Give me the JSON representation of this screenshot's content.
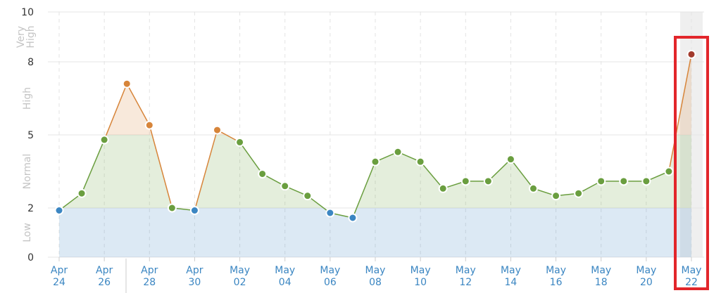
{
  "chart_data": {
    "type": "line",
    "x": [
      "Apr 24",
      "Apr 25",
      "Apr 26",
      "Apr 27",
      "Apr 28",
      "Apr 29",
      "Apr 30",
      "May 01",
      "May 02",
      "May 03",
      "May 04",
      "May 05",
      "May 06",
      "May 07",
      "May 08",
      "May 09",
      "May 10",
      "May 11",
      "May 12",
      "May 13",
      "May 14",
      "May 15",
      "May 16",
      "May 17",
      "May 18",
      "May 19",
      "May 20",
      "May 21",
      "May 22"
    ],
    "x_tick_labels": [
      {
        "line1": "Apr",
        "line2": "24"
      },
      {
        "line1": "Apr",
        "line2": "26"
      },
      {
        "line1": "Apr",
        "line2": "28"
      },
      {
        "line1": "Apr",
        "line2": "30"
      },
      {
        "line1": "May",
        "line2": "02"
      },
      {
        "line1": "May",
        "line2": "04"
      },
      {
        "line1": "May",
        "line2": "06"
      },
      {
        "line1": "May",
        "line2": "08"
      },
      {
        "line1": "May",
        "line2": "10"
      },
      {
        "line1": "May",
        "line2": "12"
      },
      {
        "line1": "May",
        "line2": "14"
      },
      {
        "line1": "May",
        "line2": "16"
      },
      {
        "line1": "May",
        "line2": "18"
      },
      {
        "line1": "May",
        "line2": "20"
      },
      {
        "line1": "May",
        "line2": "22"
      }
    ],
    "values": [
      1.9,
      2.6,
      4.8,
      7.1,
      5.4,
      2.0,
      1.9,
      5.2,
      4.7,
      3.4,
      2.9,
      2.5,
      1.8,
      1.6,
      3.9,
      4.3,
      3.9,
      2.8,
      3.1,
      3.1,
      4.0,
      2.8,
      2.5,
      2.6,
      3.1,
      3.1,
      3.1,
      3.5,
      8.3
    ],
    "ylim": [
      0,
      10
    ],
    "y_ticks": [
      "0",
      "2",
      "5",
      "8",
      "10"
    ],
    "bands": [
      {
        "label": "Low",
        "from": 0,
        "to": 2,
        "color": "#3b86c2"
      },
      {
        "label": "Normal",
        "from": 2,
        "to": 5,
        "color": "#6a9e3f"
      },
      {
        "label": "High",
        "from": 5,
        "to": 8,
        "color": "#d7853a"
      },
      {
        "label": "Very High",
        "from": 8,
        "to": 10,
        "color": "#a23a2c"
      }
    ],
    "highlight_index": 28,
    "grid": true,
    "colors": {
      "low": "#3b86c2",
      "normal": "#6a9e3f",
      "high": "#d7853a",
      "very_high": "#a23a2c",
      "highlight_box": "#e2262b"
    }
  }
}
